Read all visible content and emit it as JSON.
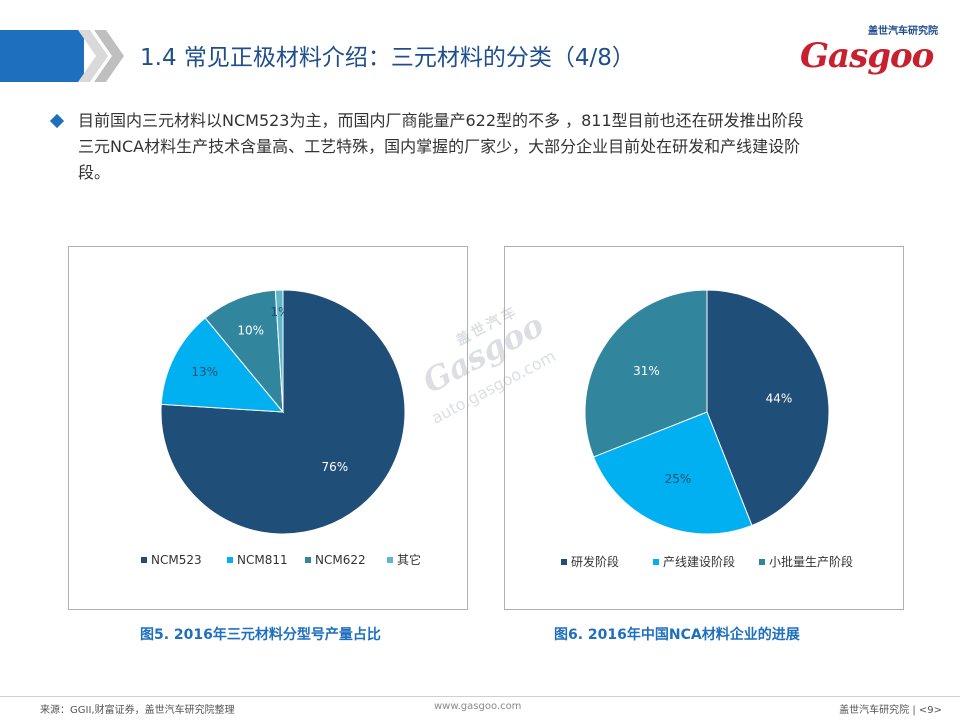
{
  "header": {
    "title": "1.4 常见正极材料介绍：三元材料的分类（4/8）",
    "brand_cn": "盖世汽车研究院",
    "brand_logo_g": "G",
    "brand_logo_rest": "asgoo"
  },
  "bullets": [
    {
      "lines": [
        "目前国内三元材料以NCM523为主，而国内厂商能量产622型的不多 ，811型目前也还在研发推出阶段",
        "三元NCA材料生产技术含量高、工艺特殊，国内掌握的厂家少，大部分企业目前处在研发和产线建设阶",
        "段。"
      ]
    }
  ],
  "watermark": {
    "cn": "盖世汽车",
    "logo": "Gasgoo",
    "url": "auto.gasgoo.com"
  },
  "colors": {
    "dark_blue": "#1f4e79",
    "light_blue": "#00b0f0",
    "teal": "#31859c",
    "light_teal": "#5eb8c9",
    "accent": "#1f6fbf"
  },
  "chart_data": [
    {
      "type": "pie",
      "title": "图5. 2016年三元材料分型号产量占比",
      "categories": [
        "NCM523",
        "NCM811",
        "NCM622",
        "其它"
      ],
      "values": [
        76,
        13,
        10,
        1
      ],
      "labels": [
        "76%",
        "13%",
        "10%",
        "1%"
      ],
      "colors": [
        "#1f4e79",
        "#00b0f0",
        "#31859c",
        "#5eb8c9"
      ],
      "legend": "bottom"
    },
    {
      "type": "pie",
      "title": "图6. 2016年中国NCA材料企业的进展",
      "categories": [
        "研发阶段",
        "产线建设阶段",
        "小批量生产阶段"
      ],
      "values": [
        44,
        25,
        31
      ],
      "labels": [
        "44%",
        "25%",
        "31%"
      ],
      "colors": [
        "#1f4e79",
        "#00b0f0",
        "#31859c"
      ],
      "legend": "bottom"
    }
  ],
  "footer": {
    "source": "来源：GGII,财富证券，盖世汽车研究院整理",
    "url": "www.gasgoo.com",
    "right": "盖世汽车研究院 | <9>"
  }
}
